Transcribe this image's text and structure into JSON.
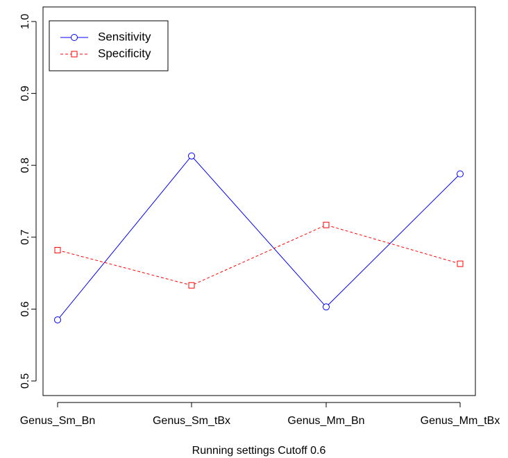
{
  "chart_data": {
    "type": "line",
    "categories": [
      "Genus_Sm_Bn",
      "Genus_Sm_tBx",
      "Genus_Mm_Bn",
      "Genus_Mm_tBx"
    ],
    "series": [
      {
        "name": "Sensitivity",
        "values": [
          0.585,
          0.813,
          0.603,
          0.788
        ],
        "color": "#0000ff",
        "line_style": "solid",
        "marker": "circle"
      },
      {
        "name": "Specificity",
        "values": [
          0.682,
          0.633,
          0.717,
          0.663
        ],
        "color": "#ff0000",
        "line_style": "dashed",
        "marker": "square"
      }
    ],
    "title": "",
    "xlabel": "Running settings Cutoff 0.6",
    "ylabel": "",
    "ylim": [
      0.5,
      1.0
    ],
    "yticks": [
      "0.5",
      "0.6",
      "0.7",
      "0.8",
      "0.9",
      "1.0"
    ],
    "grid": false,
    "legend_position": "top-left"
  }
}
